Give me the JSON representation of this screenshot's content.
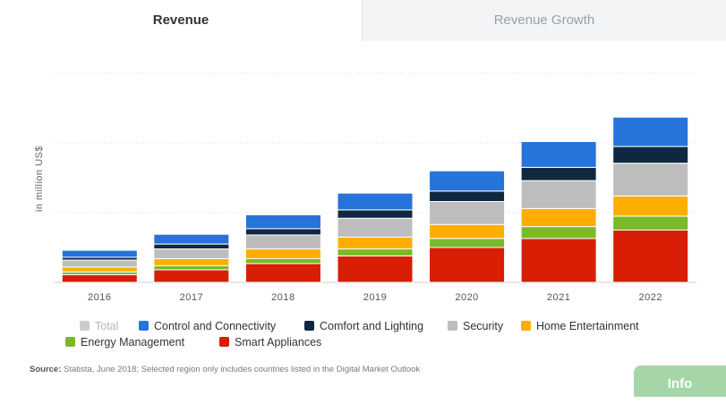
{
  "tabs": {
    "active": "Revenue",
    "inactive": "Revenue Growth"
  },
  "chart_data": {
    "type": "bar",
    "stacked": true,
    "title": "",
    "xlabel": "",
    "ylabel": "in million US$",
    "categories": [
      "2016",
      "2017",
      "2018",
      "2019",
      "2020",
      "2021",
      "2022"
    ],
    "ylim": [
      0,
      300
    ],
    "gridlines": [
      0,
      100,
      200,
      300
    ],
    "y_tick_labels_visible": false,
    "series": [
      {
        "name": "Smart Appliances",
        "color": "#d81e05",
        "values": [
          11,
          18,
          27,
          38,
          50,
          63,
          75
        ]
      },
      {
        "name": "Energy Management",
        "color": "#7ab929",
        "values": [
          4,
          6,
          7,
          10,
          13,
          17,
          20
        ]
      },
      {
        "name": "Home Entertainment",
        "color": "#ffae00",
        "values": [
          7,
          10,
          14,
          17,
          20,
          26,
          29
        ]
      },
      {
        "name": "Security",
        "color": "#bdbdbd",
        "values": [
          10,
          14,
          20,
          27,
          33,
          40,
          47
        ]
      },
      {
        "name": "Comfort and Lighting",
        "color": "#0f2840",
        "values": [
          4,
          7,
          9,
          12,
          15,
          19,
          24
        ]
      },
      {
        "name": "Control and Connectivity",
        "color": "#2673d9",
        "values": [
          10,
          14,
          20,
          24,
          29,
          37,
          42
        ]
      }
    ]
  },
  "legend": {
    "row1": [
      {
        "label": "Total",
        "color": "#cccccc",
        "disabled": true
      },
      {
        "label": "Control and Connectivity",
        "color": "#2673d9"
      },
      {
        "label": "Comfort and Lighting",
        "color": "#0f2840"
      },
      {
        "label": "Security",
        "color": "#bdbdbd"
      },
      {
        "label": "Home Entertainment",
        "color": "#ffae00"
      }
    ],
    "row2": [
      {
        "label": "Energy Management",
        "color": "#7ab929"
      },
      {
        "label": "Smart Appliances",
        "color": "#d81e05"
      }
    ]
  },
  "source": {
    "label": "Source:",
    "text": "Statista, June 2018; Selected region only includes countries listed in the Digital Market Outlook"
  },
  "info_button": "Info"
}
